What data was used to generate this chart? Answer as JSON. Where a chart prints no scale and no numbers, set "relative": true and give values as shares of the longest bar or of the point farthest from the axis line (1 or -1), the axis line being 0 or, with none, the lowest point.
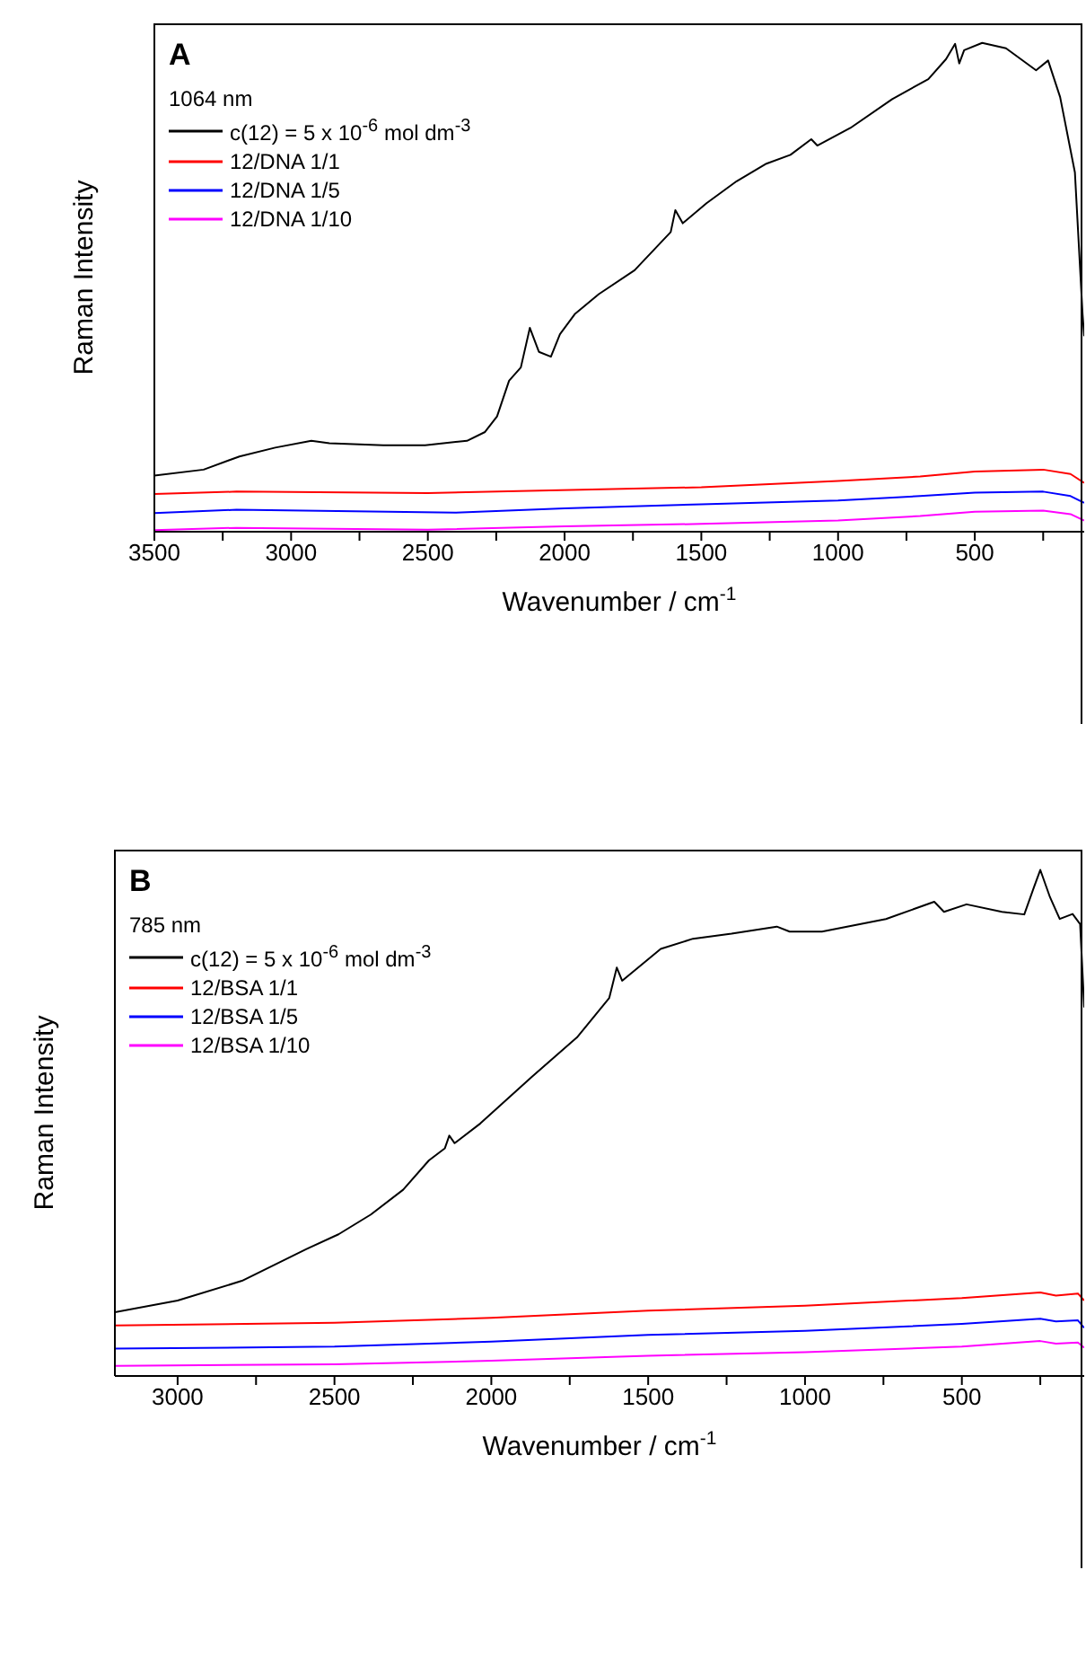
{
  "chart_data": [
    {
      "type": "line",
      "relative": true,
      "annotations": [
        "A"
      ],
      "legend_title": "1064 nm",
      "legend": "top left",
      "xlabel": "Wavenumber / cm$^{-1}$",
      "ylabel": "Raman Intensity",
      "xlim": [
        3500,
        100
      ],
      "xticks": [
        3500,
        {
          "value": 3250,
          "label": null
        },
        3000,
        {
          "value": 2750,
          "label": null
        },
        2500,
        {
          "value": 2250,
          "label": null
        },
        2000,
        {
          "value": 1750,
          "label": null
        },
        1500,
        {
          "value": 1250,
          "label": null
        },
        1000,
        {
          "value": 750,
          "label": null
        },
        500,
        {
          "value": 250,
          "label": null
        }
      ],
      "series": [
        {
          "name": "c(12) = 5 x 10$^{-6}$ mol dm$^{-3}$",
          "color": "#000000",
          "x": [
            3500,
            3320,
            3189,
            3058,
            2926,
            2860,
            2663,
            2510,
            2357,
            2291,
            2247,
            2203,
            2160,
            2127,
            2094,
            2050,
            2017,
            1963,
            1875,
            1744,
            1612,
            1595,
            1568,
            1481,
            1371,
            1262,
            1174,
            1098,
            1076,
            955,
            802,
            670,
            605,
            572,
            557,
            539,
            473,
            386,
            276,
            232,
            188,
            134,
            106,
            100
          ],
          "values": [
            0.115,
            0.127,
            0.154,
            0.172,
            0.186,
            0.181,
            0.177,
            0.177,
            0.186,
            0.204,
            0.236,
            0.309,
            0.336,
            0.417,
            0.368,
            0.358,
            0.404,
            0.445,
            0.486,
            0.535,
            0.613,
            0.658,
            0.631,
            0.672,
            0.717,
            0.753,
            0.771,
            0.803,
            0.79,
            0.826,
            0.885,
            0.926,
            0.967,
            0.998,
            0.958,
            0.985,
            1,
            0.989,
            0.944,
            0.964,
            0.889,
            0.735,
            0.445,
            0.4
          ]
        },
        {
          "name": "12/DNA 1/1",
          "color": "#ff0000",
          "x": [
            3500,
            3200,
            2500,
            1500,
            1000,
            700,
            500,
            250,
            150,
            100
          ],
          "values": [
            0.077,
            0.082,
            0.079,
            0.091,
            0.104,
            0.113,
            0.123,
            0.127,
            0.118,
            0.1
          ]
        },
        {
          "name": "12/DNA 1/5",
          "color": "#0000ff",
          "x": [
            3500,
            3200,
            2400,
            2000,
            1500,
            1000,
            700,
            500,
            250,
            150,
            100
          ],
          "values": [
            0.038,
            0.045,
            0.039,
            0.048,
            0.056,
            0.064,
            0.073,
            0.08,
            0.082,
            0.073,
            0.059
          ]
        },
        {
          "name": "12/DNA 1/10",
          "color": "#ff00ff",
          "x": [
            3500,
            3200,
            2500,
            2000,
            1500,
            1000,
            700,
            500,
            250,
            150,
            100
          ],
          "values": [
            0.003,
            0.008,
            0.004,
            0.011,
            0.016,
            0.023,
            0.032,
            0.041,
            0.043,
            0.036,
            0.023
          ]
        }
      ]
    },
    {
      "type": "line",
      "relative": true,
      "annotations": [
        "B"
      ],
      "legend_title": "785 nm",
      "legend": "top left",
      "xlabel": "Wavenumber / cm$^{-1}$",
      "ylabel": "Raman Intensity",
      "xlim": [
        3200,
        110
      ],
      "xticks": [
        3000,
        {
          "value": 2750,
          "label": null
        },
        2500,
        {
          "value": 2250,
          "label": null
        },
        2000,
        {
          "value": 1750,
          "label": null
        },
        1500,
        {
          "value": 1250,
          "label": null
        },
        1000,
        {
          "value": 750,
          "label": null
        },
        500,
        {
          "value": 250,
          "label": null
        }
      ],
      "series": [
        {
          "name": "c(12) = 5 x 10$^{-6}$ mol dm$^{-3}$",
          "color": "#000000",
          "x": [
            3200,
            3000,
            2795,
            2589,
            2487,
            2384,
            2281,
            2199,
            2148,
            2134,
            2117,
            2035,
            1871,
            1727,
            1624,
            1600,
            1583,
            1460,
            1357,
            1234,
            1090,
            1049,
            946,
            742,
            588,
            557,
            485,
            372,
            301,
            270,
            250,
            219,
            188,
            147,
            123,
            110
          ],
          "values": [
            0.126,
            0.149,
            0.188,
            0.251,
            0.28,
            0.319,
            0.368,
            0.426,
            0.45,
            0.475,
            0.46,
            0.499,
            0.591,
            0.669,
            0.747,
            0.807,
            0.781,
            0.844,
            0.864,
            0.874,
            0.888,
            0.878,
            0.878,
            0.903,
            0.937,
            0.917,
            0.932,
            0.917,
            0.912,
            0.966,
            1,
            0.946,
            0.903,
            0.913,
            0.893,
            0.728
          ]
        },
        {
          "name": "12/BSA 1/1",
          "color": "#ff0000",
          "x": [
            3200,
            2500,
            2000,
            1500,
            1000,
            500,
            250,
            200,
            130,
            110
          ],
          "values": [
            0.1,
            0.105,
            0.115,
            0.129,
            0.139,
            0.154,
            0.165,
            0.159,
            0.163,
            0.149
          ]
        },
        {
          "name": "12/BSA 1/5",
          "color": "#0000ff",
          "x": [
            3200,
            2500,
            2000,
            1500,
            1000,
            500,
            250,
            200,
            130,
            110
          ],
          "values": [
            0.054,
            0.058,
            0.068,
            0.081,
            0.089,
            0.103,
            0.113,
            0.108,
            0.11,
            0.095
          ]
        },
        {
          "name": "12/BSA 1/10",
          "color": "#ff00ff",
          "x": [
            3200,
            2500,
            2000,
            1500,
            1000,
            500,
            250,
            200,
            130,
            110
          ],
          "values": [
            0.02,
            0.023,
            0.03,
            0.04,
            0.047,
            0.058,
            0.069,
            0.064,
            0.066,
            0.056
          ]
        }
      ]
    }
  ]
}
